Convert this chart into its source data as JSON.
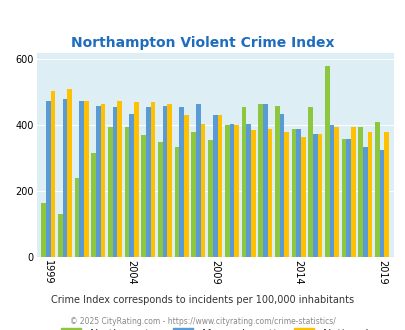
{
  "title": "Northampton Violent Crime Index",
  "subtitle": "Crime Index corresponds to incidents per 100,000 inhabitants",
  "footer": "© 2025 CityRating.com - https://www.cityrating.com/crime-statistics/",
  "years": [
    1999,
    2000,
    2001,
    2002,
    2003,
    2004,
    2005,
    2006,
    2007,
    2008,
    2009,
    2010,
    2011,
    2012,
    2013,
    2014,
    2015,
    2016,
    2017,
    2018,
    2019
  ],
  "northampton": [
    165,
    130,
    240,
    315,
    395,
    395,
    370,
    350,
    335,
    380,
    355,
    400,
    455,
    465,
    460,
    390,
    455,
    580,
    360,
    395,
    410
  ],
  "massachusetts": [
    475,
    480,
    475,
    460,
    455,
    435,
    455,
    460,
    455,
    465,
    430,
    405,
    405,
    465,
    435,
    390,
    375,
    400,
    360,
    335,
    325
  ],
  "national": [
    505,
    510,
    475,
    465,
    475,
    470,
    470,
    465,
    430,
    405,
    430,
    400,
    385,
    390,
    380,
    365,
    375,
    395,
    395,
    380,
    380
  ],
  "colors": {
    "northampton": "#8dc63f",
    "massachusetts": "#5b9bd5",
    "national": "#ffc000"
  },
  "bg_color": "#ddeef5",
  "title_color": "#1f6dbf",
  "ylim": [
    0,
    620
  ],
  "yticks": [
    0,
    200,
    400,
    600
  ],
  "xlabel_ticks": [
    1999,
    2004,
    2009,
    2014,
    2019
  ],
  "subtitle_color": "#333333",
  "footer_color": "#888888"
}
